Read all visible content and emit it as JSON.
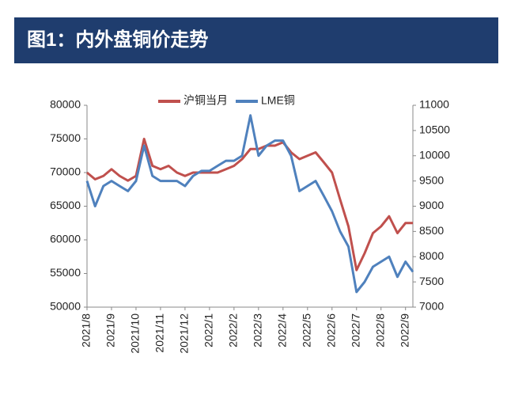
{
  "header": {
    "title": "图1：内外盘铜价走势"
  },
  "chart_data": {
    "type": "line",
    "xticks": [
      {
        "value": 0,
        "label": "2021/8"
      },
      {
        "value": 1,
        "label": "2021/9"
      },
      {
        "value": 2,
        "label": "2021/10"
      },
      {
        "value": 3,
        "label": "2021/11"
      },
      {
        "value": 4,
        "label": "2021/12"
      },
      {
        "value": 5,
        "label": "2022/1"
      },
      {
        "value": 6,
        "label": "2022/2"
      },
      {
        "value": 7,
        "label": "2022/3"
      },
      {
        "value": 8,
        "label": "2022/4"
      },
      {
        "value": 9,
        "label": "2022/5"
      },
      {
        "value": 10,
        "label": "2022/6"
      },
      {
        "value": 11,
        "label": "2022/7"
      },
      {
        "value": 12,
        "label": "2022/8"
      },
      {
        "value": 13,
        "label": "2022/9"
      }
    ],
    "xlim": [
      0,
      13.3
    ],
    "x": [
      0,
      0.33,
      0.67,
      1,
      1.33,
      1.67,
      2,
      2.33,
      2.67,
      3,
      3.33,
      3.67,
      4,
      4.33,
      4.67,
      5,
      5.33,
      5.67,
      6,
      6.33,
      6.67,
      7,
      7.33,
      7.67,
      8,
      8.33,
      8.67,
      9,
      9.33,
      9.67,
      10,
      10.33,
      10.67,
      11,
      11.33,
      11.67,
      12,
      12.33,
      12.67,
      13,
      13.3
    ],
    "ylim": [
      50000,
      80000
    ],
    "yticks": [
      50000,
      55000,
      60000,
      65000,
      70000,
      75000,
      80000
    ],
    "y2lim": [
      7000,
      11000
    ],
    "y2ticks": [
      7000,
      7500,
      8000,
      8500,
      9000,
      9500,
      10000,
      10500,
      11000
    ],
    "legend": "top",
    "series": [
      {
        "name": "沪铜当月",
        "color": "#c0504d",
        "values": [
          70000,
          69000,
          69500,
          70500,
          69500,
          68800,
          69500,
          75000,
          71000,
          70500,
          71000,
          70000,
          69500,
          70000,
          70000,
          70000,
          70000,
          70500,
          71000,
          72000,
          73500,
          73500,
          74000,
          74000,
          74500,
          73000,
          72000,
          72500,
          73000,
          71500,
          70000,
          66000,
          62000,
          55500,
          58000,
          61000,
          62000,
          63500,
          61000,
          62500,
          62500
        ]
      },
      {
        "name": "LME铜",
        "color": "#4f81bd",
        "axis": "y2",
        "values": [
          9500,
          9000,
          9400,
          9500,
          9400,
          9300,
          9500,
          10200,
          9600,
          9500,
          9500,
          9500,
          9400,
          9600,
          9700,
          9700,
          9800,
          9900,
          9900,
          10000,
          10800,
          10000,
          10200,
          10300,
          10300,
          10000,
          9300,
          9400,
          9500,
          9200,
          8900,
          8500,
          8200,
          7300,
          7500,
          7800,
          7900,
          8000,
          7600,
          7900,
          7700
        ]
      }
    ]
  }
}
